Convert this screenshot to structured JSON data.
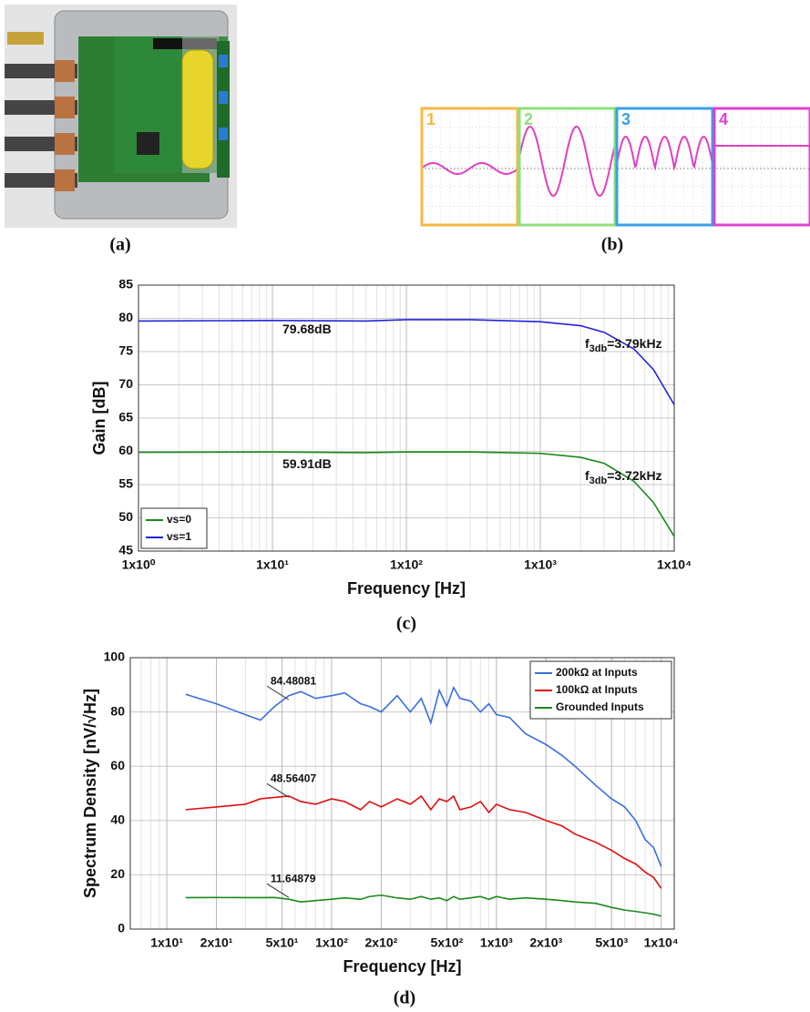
{
  "figure": {
    "panel_labels": [
      "(a)",
      "(b)",
      "(c)",
      "(d)"
    ],
    "scope_labels": [
      "1",
      "2",
      "3",
      "4"
    ]
  },
  "chart_data": [
    {
      "type": "line",
      "x_label": "Frequency [Hz]",
      "y_label": "Gain [dB]",
      "x_scale": "log",
      "grid": true,
      "minor_grid": true,
      "legend": "lower left",
      "xlim": [
        1,
        10000
      ],
      "xticks": [
        {
          "value": 1,
          "label": "1x10⁰"
        },
        {
          "value": 10,
          "label": "1x10¹"
        },
        {
          "value": 100,
          "label": "1x10²"
        },
        {
          "value": 1000,
          "label": "1x10³"
        },
        {
          "value": 10000,
          "label": "1x10⁴"
        }
      ],
      "ylim": [
        45,
        85
      ],
      "yticks": [
        45,
        50,
        55,
        60,
        65,
        70,
        75,
        80,
        85
      ],
      "x": [
        1,
        10,
        50,
        100,
        300,
        1000,
        2000,
        3000,
        5000,
        7000,
        10000
      ],
      "series": [
        {
          "name": "vs=0",
          "color": "#1a8a1a",
          "values": [
            59.85,
            59.91,
            59.8,
            59.9,
            59.9,
            59.7,
            59.1,
            58.2,
            55.5,
            52.3,
            47.2
          ]
        },
        {
          "name": "vs=1",
          "color": "#2222dd",
          "values": [
            79.6,
            79.68,
            79.6,
            79.8,
            79.8,
            79.5,
            78.9,
            77.9,
            75.4,
            72.3,
            67
          ]
        }
      ],
      "annotations": [
        {
          "text": "79.68dB"
        },
        {
          "text": "f",
          "sub": "3db",
          "tail": "=3.79kHz"
        },
        {
          "text": "59.91dB"
        },
        {
          "text": "f",
          "sub": "3db",
          "tail": "=3.72kHz"
        }
      ]
    },
    {
      "type": "line",
      "x_label": "Frequency [Hz]",
      "y_label": "Spectrum Density [nV/√Hz]",
      "x_scale": "log",
      "grid": true,
      "minor_grid": true,
      "legend": "upper right",
      "xlim": [
        6,
        12000
      ],
      "xticks": [
        {
          "value": 10,
          "label": "1x10¹"
        },
        {
          "value": 20,
          "label": "2x10¹"
        },
        {
          "value": 50,
          "label": "5x10¹"
        },
        {
          "value": 100,
          "label": "1x10²"
        },
        {
          "value": 200,
          "label": "2x10²"
        },
        {
          "value": 500,
          "label": "5x10²"
        },
        {
          "value": 1000,
          "label": "1x10³"
        },
        {
          "value": 2000,
          "label": "2x10³"
        },
        {
          "value": 5000,
          "label": "5x10³"
        },
        {
          "value": 10000,
          "label": "1x10⁴"
        }
      ],
      "ylim": [
        0,
        100
      ],
      "yticks": [
        0,
        20,
        40,
        60,
        80,
        100
      ],
      "x": [
        13,
        20,
        30,
        37,
        45,
        55,
        65,
        80,
        100,
        120,
        150,
        170,
        200,
        250,
        300,
        350,
        400,
        450,
        500,
        550,
        600,
        700,
        800,
        900,
        1000,
        1200,
        1500,
        2000,
        2500,
        3000,
        4000,
        5000,
        6000,
        7000,
        8000,
        9000,
        10000
      ],
      "series": [
        {
          "name": "200kΩ at Inputs",
          "color": "#3a6fe0",
          "values": [
            86.5,
            83,
            79,
            77,
            82,
            86,
            87.5,
            85,
            86,
            87,
            83,
            82,
            80,
            86,
            80,
            85,
            76,
            88,
            82,
            89,
            85,
            84,
            80,
            83,
            79,
            78,
            72,
            68,
            64,
            60,
            53,
            48,
            45,
            40,
            33,
            30,
            23
          ]
        },
        {
          "name": "100kΩ at Inputs",
          "color": "#e01010",
          "values": [
            44,
            45,
            46,
            48,
            48.5,
            49,
            47,
            46,
            48,
            47,
            44,
            47,
            45,
            48,
            46,
            49,
            44,
            48,
            47,
            49,
            44,
            45,
            47,
            43,
            46,
            44,
            43,
            40,
            38,
            35,
            32,
            29,
            26,
            24,
            21,
            19,
            15
          ]
        },
        {
          "name": "Grounded Inputs",
          "color": "#1a8a1a",
          "values": [
            11.6,
            11.65,
            11.6,
            11.6,
            11.64,
            11,
            10,
            10.5,
            11,
            11.5,
            11,
            12,
            12.5,
            11.5,
            11,
            12,
            11,
            11.5,
            10.5,
            12,
            11,
            11.5,
            12,
            11,
            12,
            11,
            11.5,
            11,
            10.5,
            10,
            9.5,
            8,
            7,
            6.5,
            6,
            5.5,
            4.8
          ]
        }
      ],
      "annotations": [
        {
          "value": 84.48081
        },
        {
          "value": 48.56407
        },
        {
          "value": 11.64879
        }
      ]
    }
  ]
}
